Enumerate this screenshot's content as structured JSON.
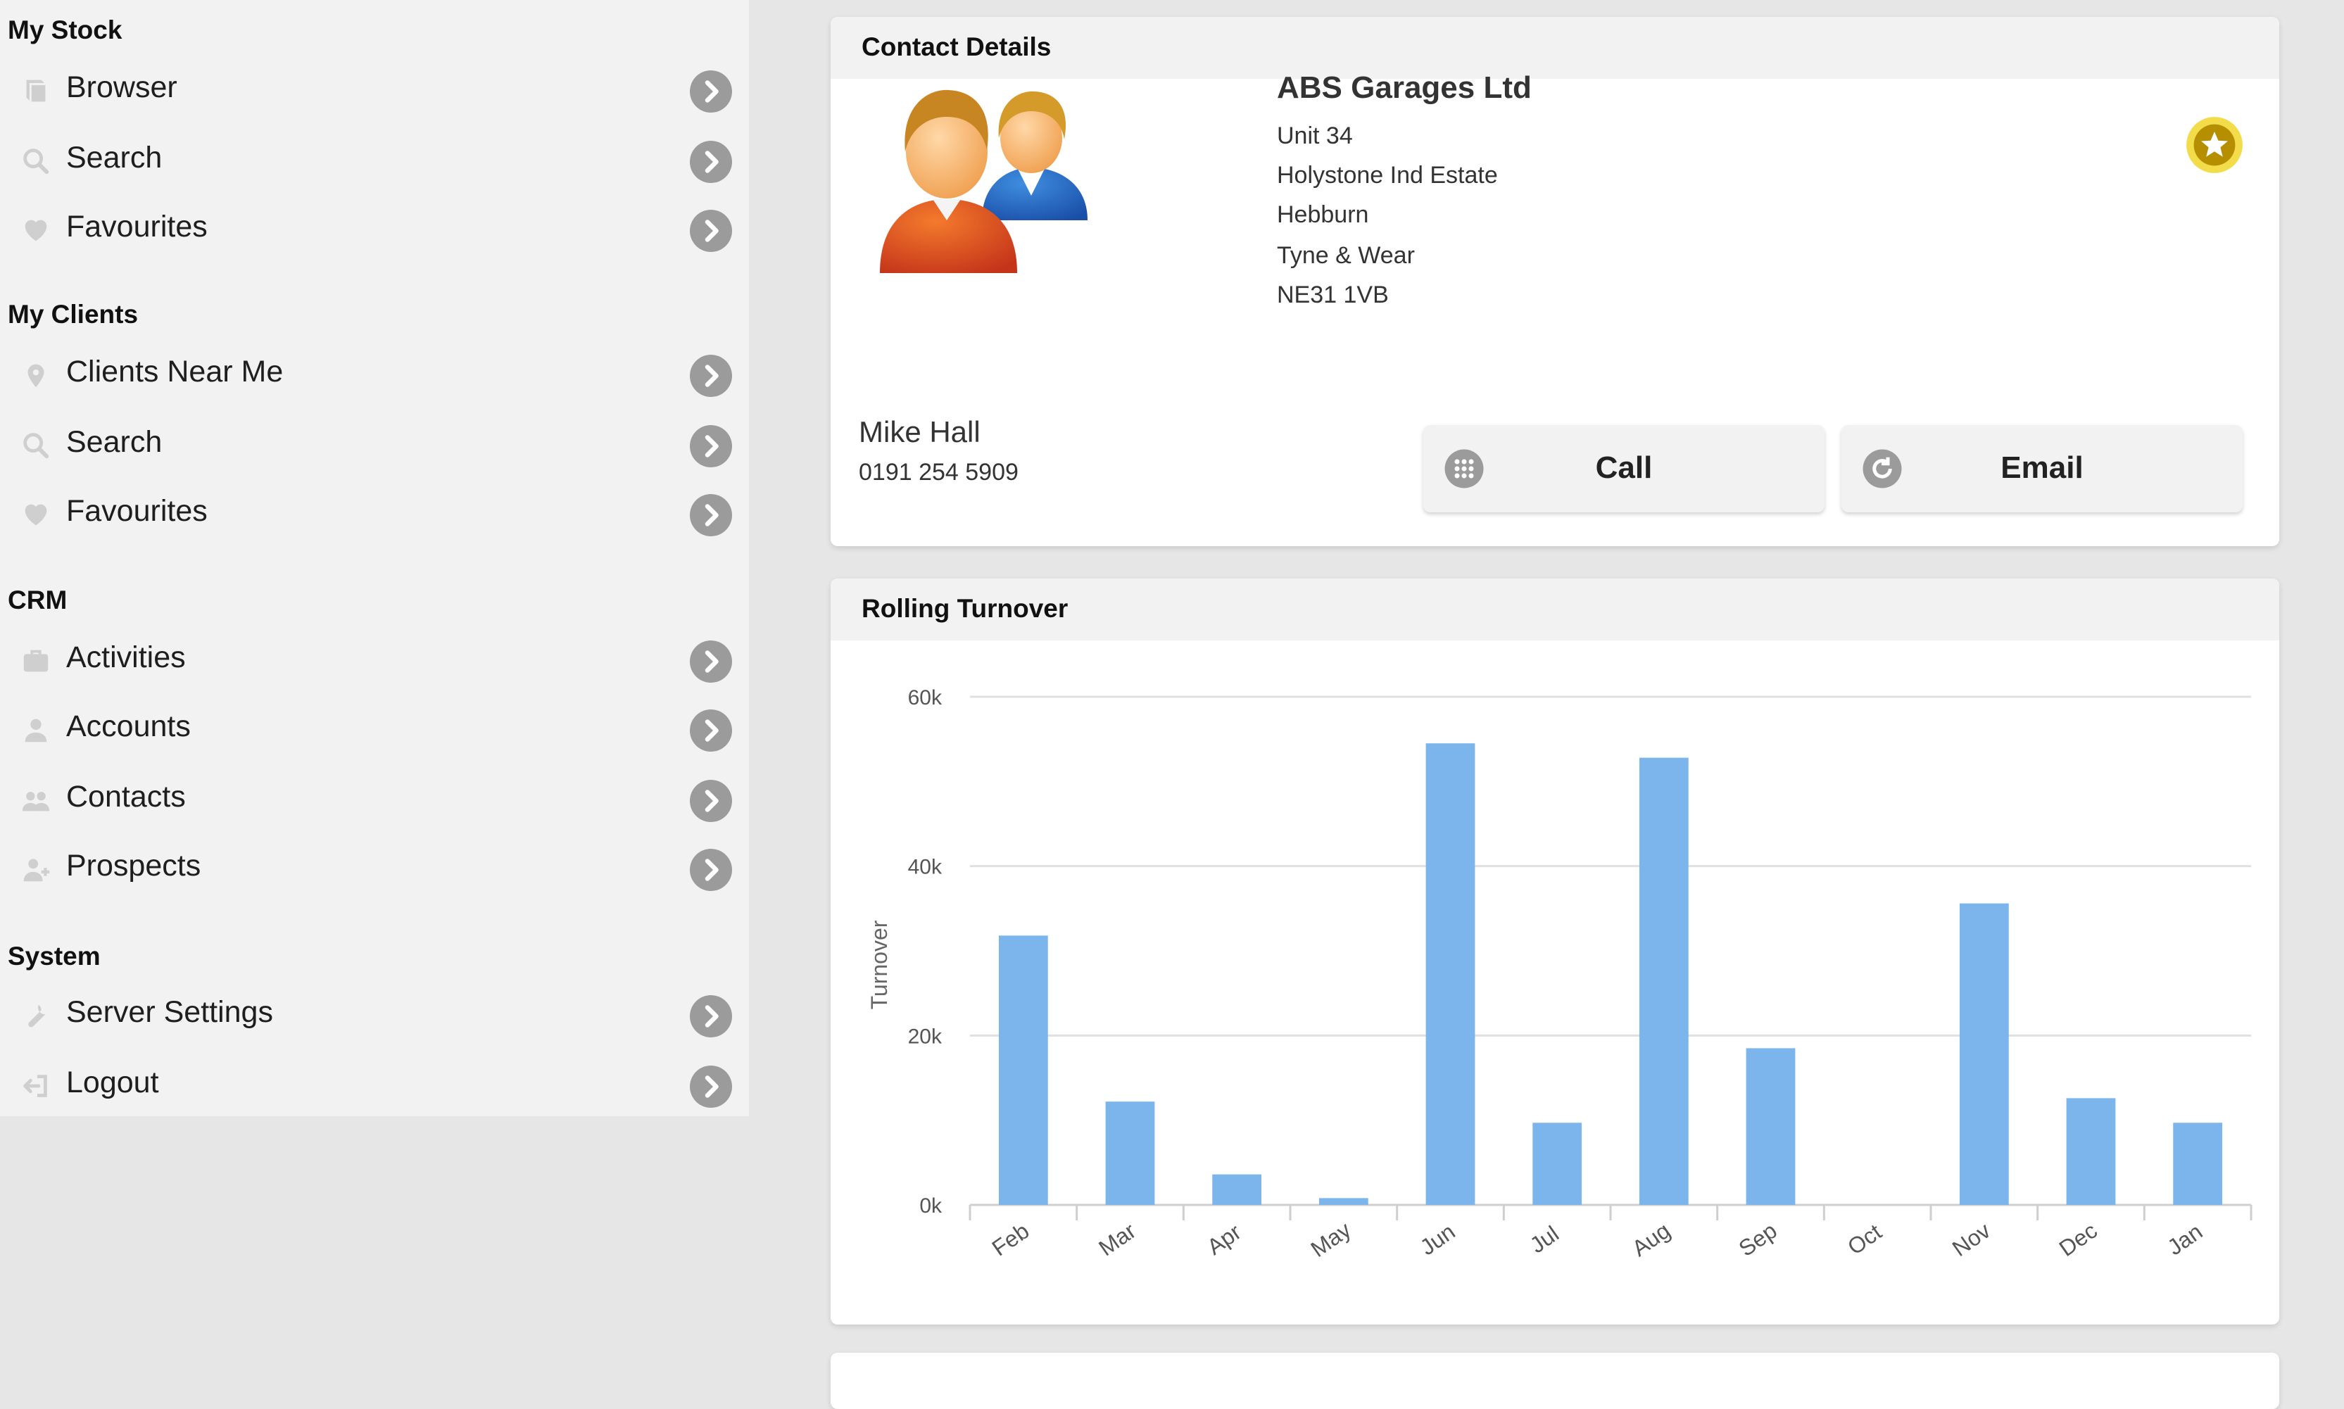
{
  "sidebar": {
    "sections": [
      {
        "title": "My Stock",
        "items": [
          {
            "label": "Browser",
            "icon": "book-icon"
          },
          {
            "label": "Search",
            "icon": "search-icon"
          },
          {
            "label": "Favourites",
            "icon": "heart-icon"
          }
        ]
      },
      {
        "title": "My Clients",
        "items": [
          {
            "label": "Clients Near Me",
            "icon": "map-pin-icon"
          },
          {
            "label": "Search",
            "icon": "search-icon"
          },
          {
            "label": "Favourites",
            "icon": "heart-icon"
          }
        ]
      },
      {
        "title": "CRM",
        "items": [
          {
            "label": "Activities",
            "icon": "briefcase-icon"
          },
          {
            "label": "Accounts",
            "icon": "user-icon"
          },
          {
            "label": "Contacts",
            "icon": "users-icon"
          },
          {
            "label": "Prospects",
            "icon": "user-plus-icon"
          }
        ]
      },
      {
        "title": "System",
        "items": [
          {
            "label": "Server Settings",
            "icon": "wrench-icon"
          },
          {
            "label": "Logout",
            "icon": "logout-icon"
          }
        ]
      }
    ]
  },
  "contact": {
    "header": "Contact Details",
    "company": "ABS Garages Ltd",
    "address": [
      "Unit 34",
      "Holystone Ind Estate",
      "Hebburn",
      "Tyne & Wear",
      "NE31 1VB"
    ],
    "person_name": "Mike Hall",
    "phone": "0191 254 5909",
    "call_label": "Call",
    "email_label": "Email"
  },
  "turnover": {
    "header": "Rolling Turnover"
  },
  "colors": {
    "bar": "#7cb5ec",
    "gridline": "#e0e0e0",
    "star_gold": "#e6c21f",
    "star_inner": "#b58f00",
    "arrow_grey": "#9b9b9b",
    "sidebar_bg": "#f2f2f2",
    "page_bg": "#e6e6e6"
  },
  "chart_data": {
    "type": "bar",
    "ylabel": "Turnover",
    "categories": [
      "Feb",
      "Mar",
      "Apr",
      "May",
      "Jun",
      "Jul",
      "Aug",
      "Sep",
      "Oct",
      "Nov",
      "Dec",
      "Jan"
    ],
    "values": [
      31800,
      12200,
      3600,
      800,
      54500,
      9700,
      52800,
      18500,
      0,
      35600,
      12600,
      9700
    ],
    "ylim": [
      0,
      60000
    ],
    "yticks": [
      0,
      20000,
      40000,
      60000
    ],
    "ytick_labels": [
      "0k",
      "20k",
      "40k",
      "60k"
    ],
    "grid": true,
    "legend": "none"
  }
}
